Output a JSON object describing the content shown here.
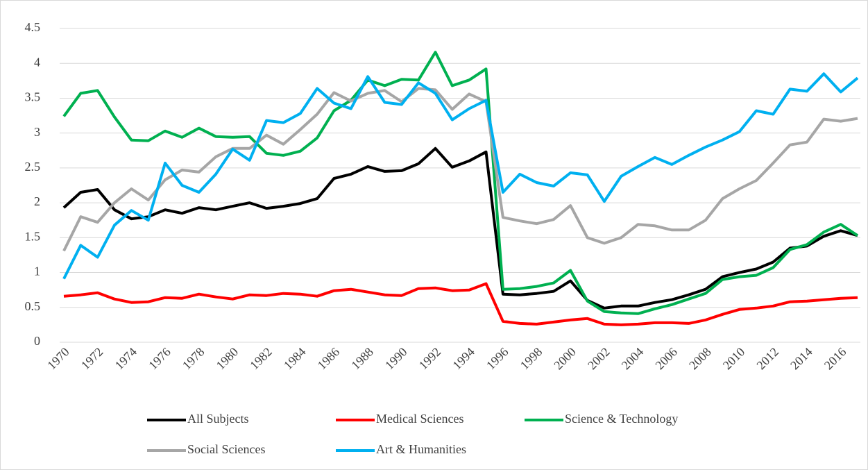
{
  "chart_data": {
    "type": "line",
    "categories": [
      "1970",
      null,
      "1972",
      null,
      "1974",
      null,
      "1976",
      null,
      "1978",
      null,
      "1980",
      null,
      "1982",
      null,
      "1984",
      null,
      "1986",
      null,
      "1988",
      null,
      "1990",
      null,
      "1992",
      null,
      "1994",
      null,
      "1996",
      null,
      "1998",
      null,
      "2000",
      null,
      "2002",
      null,
      "2004",
      null,
      "2006",
      null,
      "2008",
      null,
      "2010",
      null,
      "2012",
      null,
      "2014",
      null,
      "2016",
      null
    ],
    "series": [
      {
        "name": "All Subjects",
        "color": "#000000",
        "values": [
          1.93,
          2.15,
          2.19,
          1.9,
          1.77,
          1.8,
          1.9,
          1.85,
          1.93,
          1.9,
          1.95,
          2.0,
          1.92,
          1.95,
          1.99,
          2.06,
          2.35,
          2.41,
          2.52,
          2.45,
          2.46,
          2.56,
          2.78,
          2.51,
          2.6,
          2.73,
          0.69,
          0.68,
          0.7,
          0.73,
          0.88,
          0.6,
          0.49,
          0.52,
          0.52,
          0.57,
          0.61,
          0.68,
          0.76,
          0.94,
          1.0,
          1.05,
          1.15,
          1.35,
          1.38,
          1.52,
          1.6,
          1.53
        ]
      },
      {
        "name": "Medical Sciences",
        "color": "#ff0000",
        "values": [
          0.66,
          0.68,
          0.71,
          0.62,
          0.57,
          0.58,
          0.64,
          0.63,
          0.69,
          0.65,
          0.62,
          0.68,
          0.67,
          0.7,
          0.69,
          0.66,
          0.74,
          0.76,
          0.72,
          0.68,
          0.67,
          0.77,
          0.78,
          0.74,
          0.75,
          0.84,
          0.3,
          0.27,
          0.26,
          0.29,
          0.32,
          0.34,
          0.26,
          0.25,
          0.26,
          0.28,
          0.28,
          0.27,
          0.32,
          0.4,
          0.47,
          0.49,
          0.52,
          0.58,
          0.59,
          0.61,
          0.63,
          0.64
        ]
      },
      {
        "name": "Science & Technology",
        "color": "#00b050",
        "values": [
          3.24,
          3.57,
          3.61,
          3.23,
          2.9,
          2.89,
          3.03,
          2.94,
          3.07,
          2.95,
          2.94,
          2.95,
          2.71,
          2.68,
          2.74,
          2.93,
          3.32,
          3.47,
          3.76,
          3.68,
          3.77,
          3.76,
          4.16,
          3.68,
          3.76,
          3.92,
          0.76,
          0.77,
          0.8,
          0.85,
          1.03,
          0.59,
          0.44,
          0.42,
          0.41,
          0.48,
          0.54,
          0.62,
          0.7,
          0.9,
          0.94,
          0.96,
          1.07,
          1.33,
          1.4,
          1.58,
          1.69,
          1.53
        ]
      },
      {
        "name": "Social Sciences",
        "color": "#a6a6a6",
        "values": [
          1.31,
          1.8,
          1.72,
          2.0,
          2.2,
          2.04,
          2.33,
          2.47,
          2.44,
          2.66,
          2.78,
          2.78,
          2.97,
          2.84,
          3.05,
          3.27,
          3.58,
          3.46,
          3.57,
          3.61,
          3.45,
          3.64,
          3.62,
          3.34,
          3.56,
          3.45,
          1.79,
          1.74,
          1.7,
          1.76,
          1.96,
          1.5,
          1.42,
          1.5,
          1.69,
          1.67,
          1.61,
          1.61,
          1.75,
          2.06,
          2.2,
          2.32,
          2.57,
          2.83,
          2.87,
          3.2,
          3.17,
          3.21
        ]
      },
      {
        "name": "Art & Humanities",
        "color": "#00b0f0",
        "values": [
          0.91,
          1.39,
          1.22,
          1.68,
          1.89,
          1.75,
          2.57,
          2.25,
          2.15,
          2.41,
          2.77,
          2.61,
          3.18,
          3.15,
          3.28,
          3.64,
          3.43,
          3.35,
          3.81,
          3.44,
          3.41,
          3.72,
          3.57,
          3.19,
          3.35,
          3.47,
          2.15,
          2.41,
          2.29,
          2.24,
          2.43,
          2.4,
          2.02,
          2.38,
          2.52,
          2.65,
          2.55,
          2.68,
          2.8,
          2.9,
          3.02,
          3.32,
          3.27,
          3.63,
          3.6,
          3.85,
          3.59,
          3.79
        ]
      }
    ],
    "ylim": [
      0,
      4.5
    ],
    "yticks": [
      0,
      0.5,
      1,
      1.5,
      2,
      2.5,
      3,
      3.5,
      4,
      4.5
    ],
    "grid": true,
    "legend": "bottom"
  }
}
